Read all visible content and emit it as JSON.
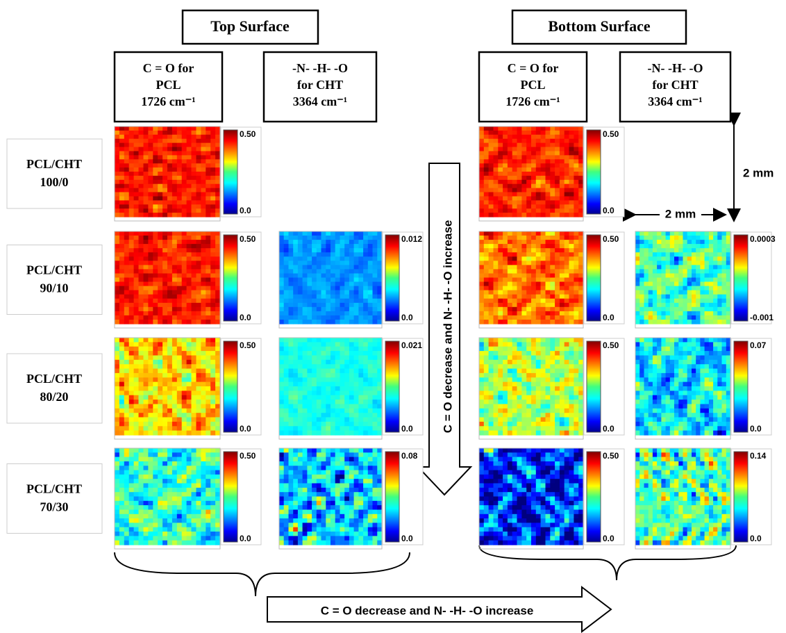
{
  "headers": {
    "top": "Top Surface",
    "bottom": "Bottom Surface"
  },
  "columns": [
    {
      "lines": [
        "C = O for",
        "PCL",
        "1726 cm⁻¹"
      ]
    },
    {
      "lines": [
        "-N- -H- -O",
        "for CHT",
        "3364 cm⁻¹"
      ]
    },
    {
      "lines": [
        "C = O for",
        "PCL",
        "1726 cm⁻¹"
      ]
    },
    {
      "lines": [
        "-N- -H- -O",
        "for CHT",
        "3364 cm⁻¹"
      ]
    }
  ],
  "rows": [
    {
      "lines": [
        "PCL/CHT",
        "100/0"
      ],
      "panels": {
        "top_pcl": {
          "max": "0.50",
          "min": "0.0"
        },
        "bottom_pcl": {
          "max": "0.50",
          "min": "0.0"
        }
      }
    },
    {
      "lines": [
        "PCL/CHT",
        "90/10"
      ],
      "panels": {
        "top_pcl": {
          "max": "0.50",
          "min": "0.0"
        },
        "top_cht": {
          "max": "0.012",
          "min": "0.0"
        },
        "bottom_pcl": {
          "max": "0.50",
          "min": "0.0"
        },
        "bottom_cht": {
          "max": "0.0003",
          "min": "-0.001"
        }
      }
    },
    {
      "lines": [
        "PCL/CHT",
        "80/20"
      ],
      "panels": {
        "top_pcl": {
          "max": "0.50",
          "min": "0.0"
        },
        "top_cht": {
          "max": "0.021",
          "min": "0.0"
        },
        "bottom_pcl": {
          "max": "0.50",
          "min": "0.0"
        },
        "bottom_cht": {
          "max": "0.07",
          "min": "0.0"
        }
      }
    },
    {
      "lines": [
        "PCL/CHT",
        "70/30"
      ],
      "panels": {
        "top_pcl": {
          "max": "0.50",
          "min": "0.0"
        },
        "top_cht": {
          "max": "0.08",
          "min": "0.0"
        },
        "bottom_pcl": {
          "max": "0.50",
          "min": "0.0"
        },
        "bottom_cht": {
          "max": "0.14",
          "min": "0.0"
        }
      }
    }
  ],
  "scale": {
    "vertical": "2 mm",
    "horizontal": "2 mm"
  },
  "vertical_arrow": "C = O  decrease  and  N- -H- -O increase",
  "bottom_arrow": "C = O  decrease  and  N- -H- -O increase"
}
